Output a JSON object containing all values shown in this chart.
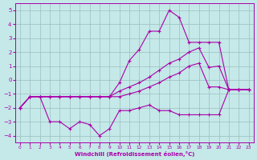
{
  "xlabel": "Windchill (Refroidissement éolien,°C)",
  "xlim": [
    -0.5,
    23.5
  ],
  "ylim": [
    -4.5,
    5.5
  ],
  "yticks": [
    -4,
    -3,
    -2,
    -1,
    0,
    1,
    2,
    3,
    4,
    5
  ],
  "xticks": [
    0,
    1,
    2,
    3,
    4,
    5,
    6,
    7,
    8,
    9,
    10,
    11,
    12,
    13,
    14,
    15,
    16,
    17,
    18,
    19,
    20,
    21,
    22,
    23
  ],
  "background_color": "#c5e8e8",
  "line_color": "#aa00aa",
  "grid_color": "#9abebe",
  "lines": [
    {
      "x": [
        0,
        1,
        2,
        3,
        4,
        5,
        6,
        7,
        8,
        9,
        10,
        11,
        12,
        13,
        14,
        15,
        16,
        17,
        18,
        19,
        20,
        21,
        22,
        23
      ],
      "y": [
        -2.0,
        -1.2,
        -1.2,
        -1.2,
        -1.2,
        -1.2,
        -1.2,
        -1.2,
        -1.2,
        -1.2,
        -0.2,
        1.4,
        2.2,
        3.5,
        3.5,
        5.0,
        4.5,
        2.7,
        2.7,
        2.7,
        2.7,
        -0.7,
        -0.7,
        -0.7
      ]
    },
    {
      "x": [
        0,
        1,
        2,
        3,
        4,
        5,
        6,
        7,
        8,
        9,
        10,
        11,
        12,
        13,
        14,
        15,
        16,
        17,
        18,
        19,
        20,
        21,
        22,
        23
      ],
      "y": [
        -2.0,
        -1.2,
        -1.2,
        -1.2,
        -1.2,
        -1.2,
        -1.2,
        -1.2,
        -1.2,
        -1.2,
        -0.8,
        -0.5,
        -0.2,
        0.2,
        0.7,
        1.2,
        1.5,
        2.0,
        2.3,
        0.9,
        1.0,
        -0.7,
        -0.7,
        -0.7
      ]
    },
    {
      "x": [
        0,
        1,
        2,
        3,
        4,
        5,
        6,
        7,
        8,
        9,
        10,
        11,
        12,
        13,
        14,
        15,
        16,
        17,
        18,
        19,
        20,
        21,
        22,
        23
      ],
      "y": [
        -2.0,
        -1.2,
        -1.2,
        -1.2,
        -1.2,
        -1.2,
        -1.2,
        -1.2,
        -1.2,
        -1.2,
        -1.2,
        -1.0,
        -0.8,
        -0.5,
        -0.2,
        0.2,
        0.5,
        1.0,
        1.2,
        -0.5,
        -0.5,
        -0.7,
        -0.7,
        -0.7
      ]
    },
    {
      "x": [
        0,
        1,
        2,
        3,
        4,
        5,
        6,
        7,
        8,
        9,
        10,
        11,
        12,
        13,
        14,
        15,
        16,
        17,
        18,
        19,
        20,
        21,
        22,
        23
      ],
      "y": [
        -2.0,
        -1.2,
        -1.2,
        -3.0,
        -3.0,
        -3.5,
        -3.0,
        -3.2,
        -4.0,
        -3.5,
        -2.2,
        -2.2,
        -2.0,
        -1.8,
        -2.2,
        -2.2,
        -2.5,
        -2.5,
        -2.5,
        -2.5,
        -2.5,
        -0.7,
        -0.7,
        -0.7
      ]
    }
  ]
}
